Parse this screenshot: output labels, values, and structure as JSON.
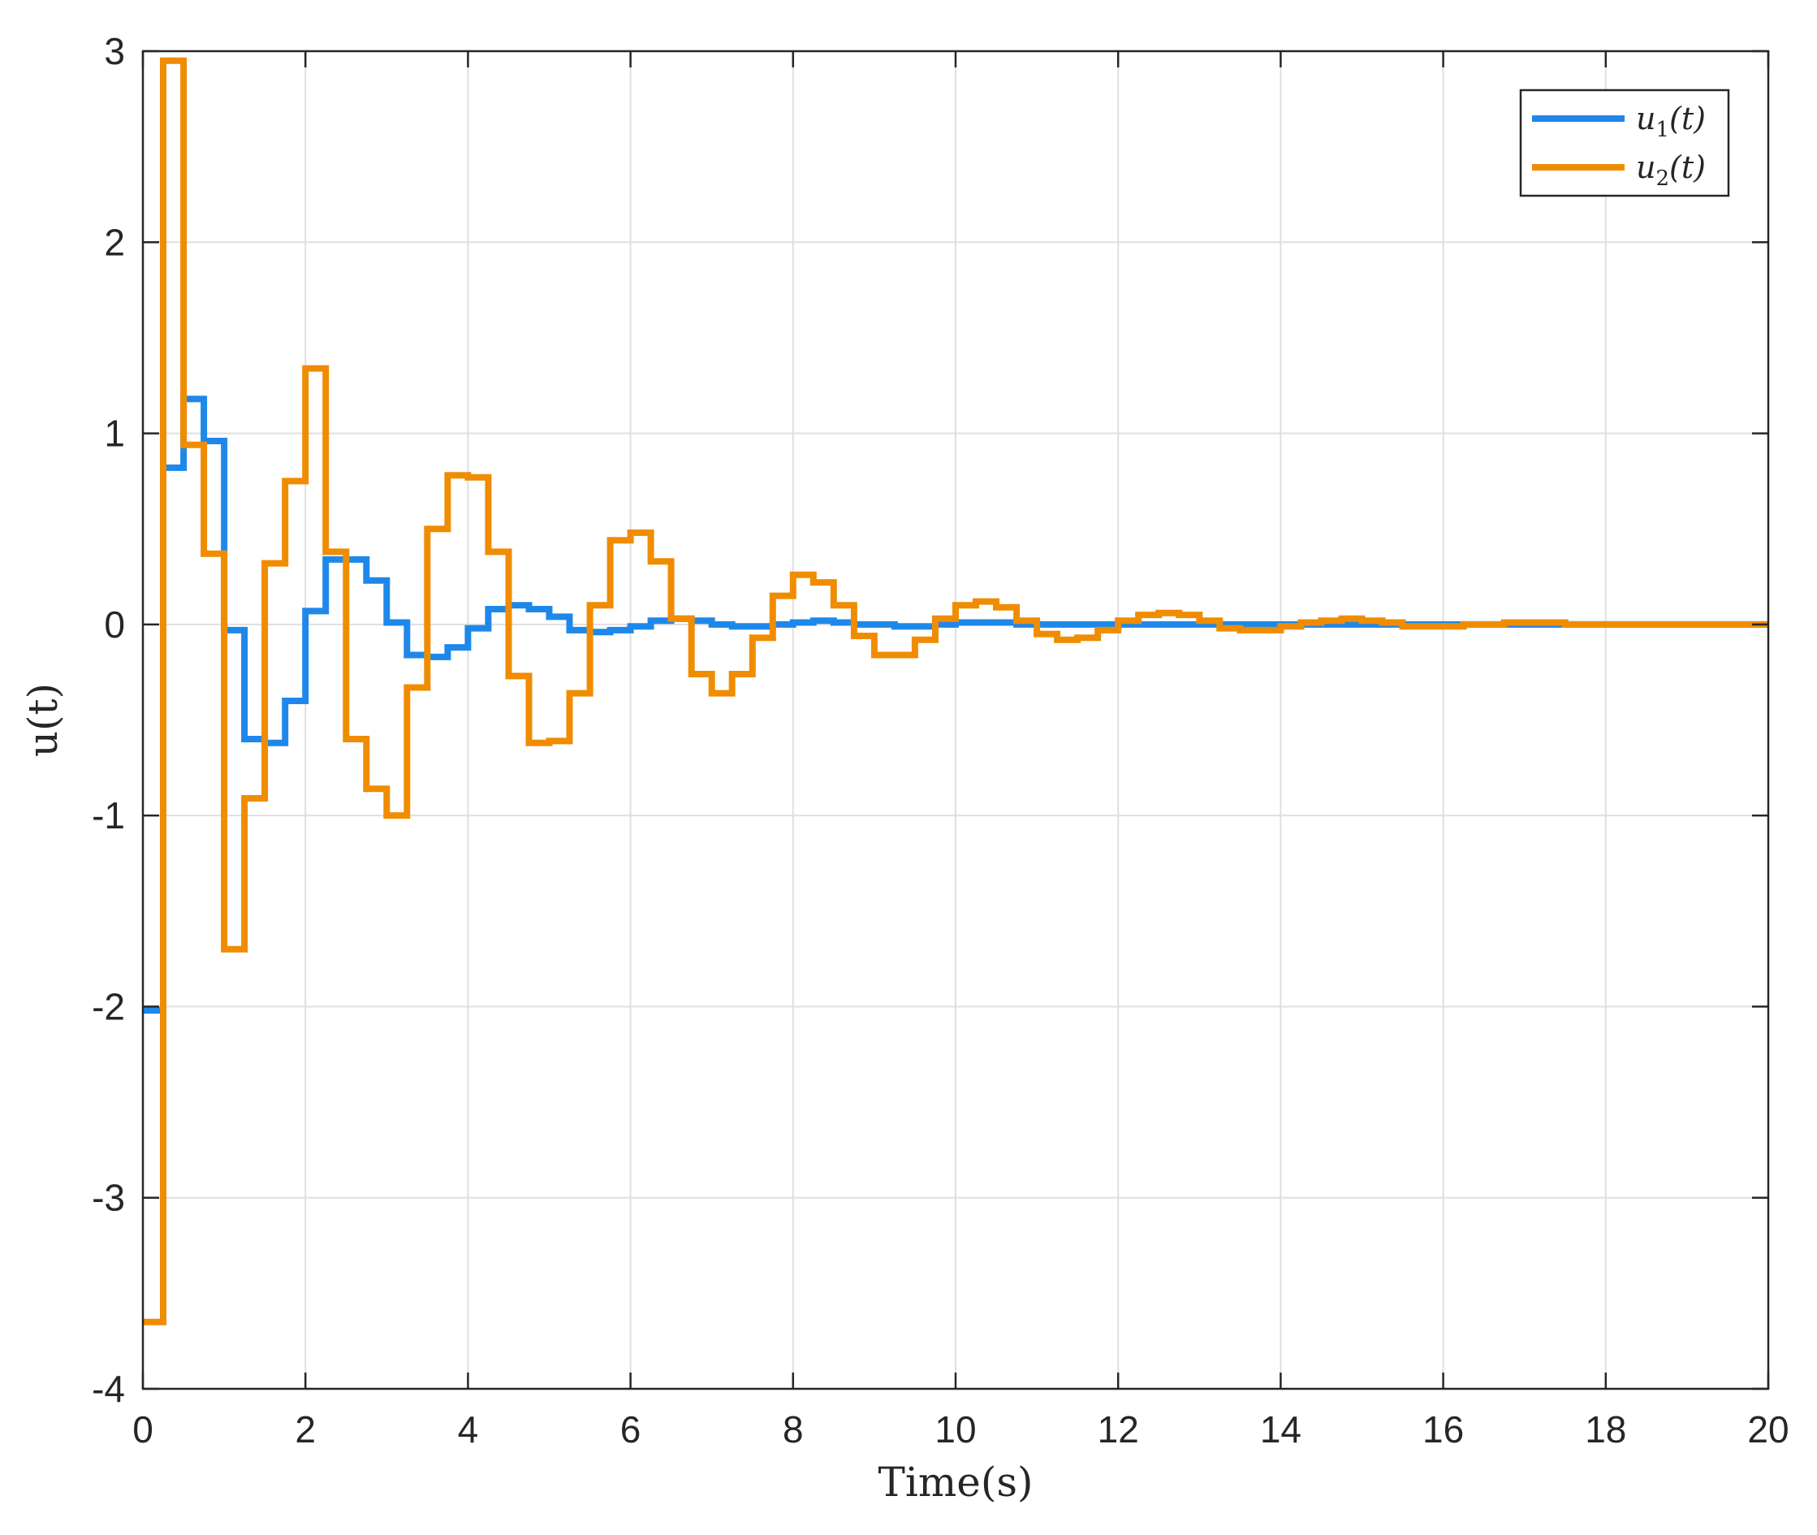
{
  "chart_data": {
    "type": "line",
    "step": true,
    "xlabel": "Time(s)",
    "ylabel": "u(t)",
    "xlim": [
      0,
      20
    ],
    "ylim": [
      -4,
      3
    ],
    "xticks": [
      "0",
      "2",
      "4",
      "6",
      "8",
      "10",
      "12",
      "14",
      "16",
      "18",
      "20"
    ],
    "yticks": [
      "3",
      "2",
      "1",
      "0",
      "-1",
      "-2",
      "-3",
      "-4"
    ],
    "grid": true,
    "legend_position": "top-right",
    "colors": {
      "u1": "#1e88ea",
      "u2": "#f08c00"
    },
    "sample_period": 0.25,
    "series": [
      {
        "name": "u1(t)",
        "values": [
          -2.02,
          0.82,
          1.18,
          0.96,
          -0.03,
          -0.6,
          -0.62,
          -0.4,
          0.07,
          0.34,
          0.34,
          0.23,
          0.01,
          -0.16,
          -0.17,
          -0.12,
          -0.02,
          0.08,
          0.1,
          0.08,
          0.04,
          -0.03,
          -0.04,
          -0.03,
          -0.01,
          0.02,
          0.03,
          0.02,
          0.0,
          -0.01,
          -0.01,
          0.0,
          0.01,
          0.02,
          0.01,
          0.0,
          0.0,
          -0.01,
          -0.01,
          0.0,
          0.01,
          0.01,
          0.01,
          0.0,
          0.0,
          0.0,
          0.0,
          0.0,
          0.0,
          0.0,
          0.0,
          0.0,
          0.0,
          0.0,
          0.0,
          0.0,
          0.0,
          0.0,
          0.0,
          0.0,
          0.0,
          0.0,
          0.0,
          0.0,
          0.0,
          0.0,
          0.0,
          0.0,
          0.0,
          0.0,
          0.0,
          0.0,
          0.0,
          0.0,
          0.0,
          0.0,
          0.0,
          0.0,
          0.0,
          0.0
        ]
      },
      {
        "name": "u2(t)",
        "values": [
          -3.65,
          2.95,
          0.94,
          0.37,
          -1.7,
          -0.91,
          0.32,
          0.75,
          1.34,
          0.38,
          -0.6,
          -0.86,
          -1.0,
          -0.33,
          0.5,
          0.78,
          0.77,
          0.38,
          -0.27,
          -0.62,
          -0.61,
          -0.36,
          0.1,
          0.44,
          0.48,
          0.33,
          0.03,
          -0.26,
          -0.36,
          -0.26,
          -0.07,
          0.15,
          0.26,
          0.22,
          0.1,
          -0.06,
          -0.16,
          -0.16,
          -0.08,
          0.03,
          0.1,
          0.12,
          0.09,
          0.02,
          -0.05,
          -0.08,
          -0.07,
          -0.03,
          0.02,
          0.05,
          0.06,
          0.05,
          0.02,
          -0.02,
          -0.03,
          -0.03,
          -0.01,
          0.01,
          0.02,
          0.03,
          0.02,
          0.01,
          -0.01,
          -0.01,
          -0.01,
          0.0,
          0.0,
          0.01,
          0.01,
          0.01,
          0.0,
          0.0,
          0.0,
          0.0,
          0.0,
          0.0,
          0.0,
          0.0,
          0.0,
          0.0
        ]
      }
    ],
    "legend": [
      {
        "label": "u1(t)",
        "symbol": "u",
        "subscript": "1",
        "arg": "(t)"
      },
      {
        "label": "u2(t)",
        "symbol": "u",
        "subscript": "2",
        "arg": "(t)"
      }
    ]
  }
}
